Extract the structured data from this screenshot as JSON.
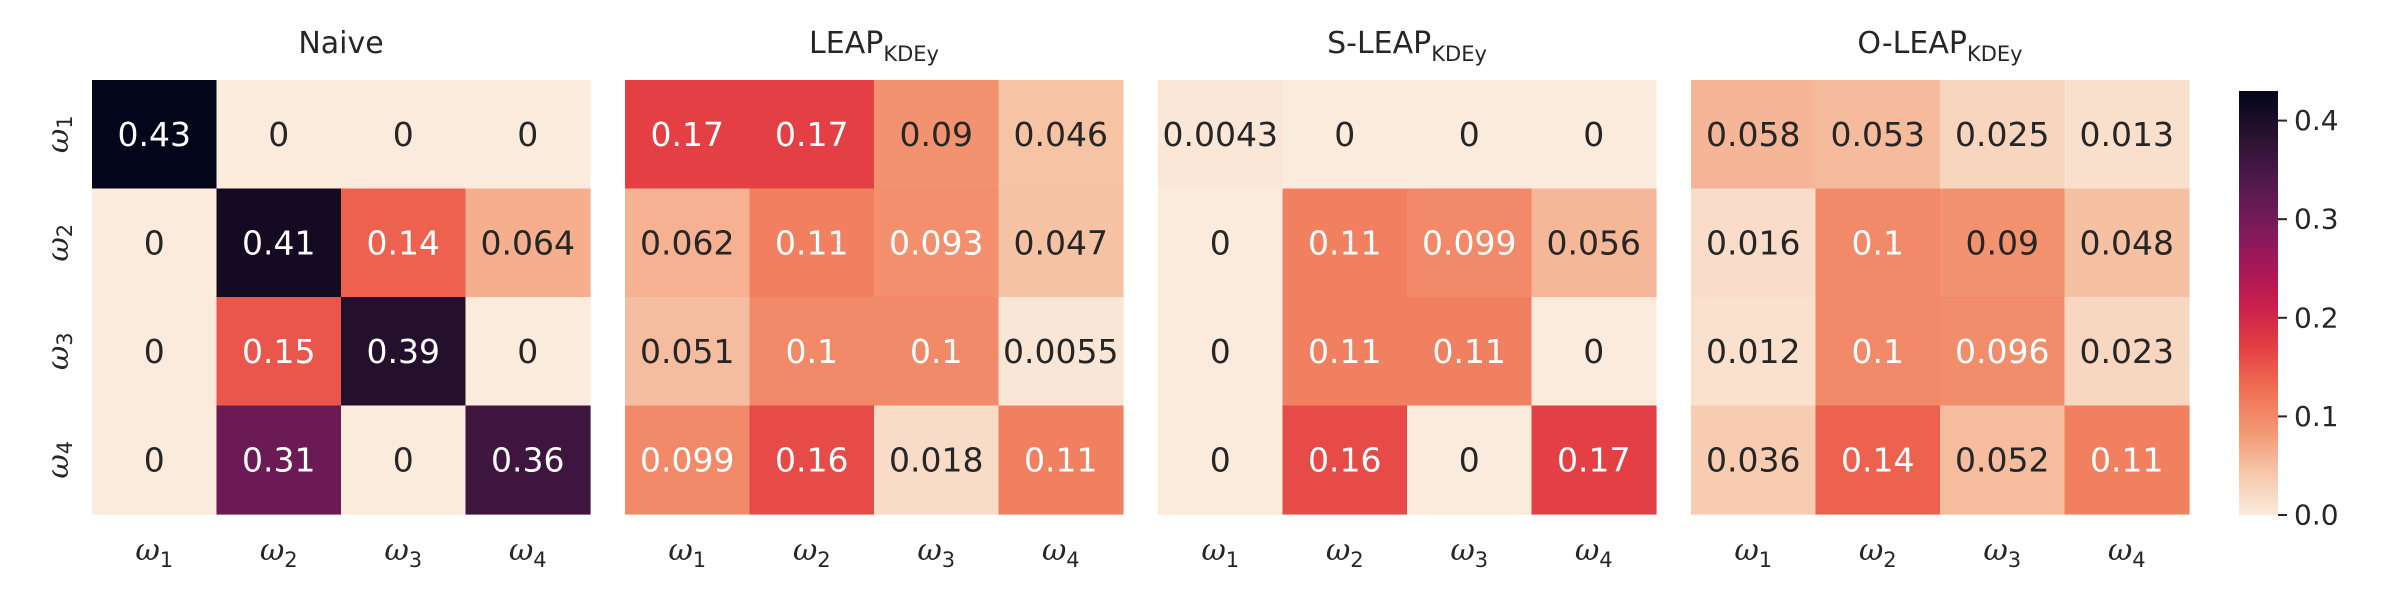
{
  "chart_data": [
    {
      "type": "heatmap",
      "title": "Naive",
      "title_sub": "",
      "row_labels": [
        "ω1",
        "ω2",
        "ω3",
        "ω4"
      ],
      "col_labels": [
        "ω1",
        "ω2",
        "ω3",
        "ω4"
      ],
      "values": [
        [
          0.43,
          0,
          0,
          0
        ],
        [
          0,
          0.41,
          0.14,
          0.064
        ],
        [
          0,
          0.15,
          0.39,
          0
        ],
        [
          0,
          0.31,
          0,
          0.36
        ]
      ],
      "labels": [
        [
          "0.43",
          "0",
          "0",
          "0"
        ],
        [
          "0",
          "0.41",
          "0.14",
          "0.064"
        ],
        [
          "0",
          "0.15",
          "0.39",
          "0"
        ],
        [
          "0",
          "0.31",
          "0",
          "0.36"
        ]
      ]
    },
    {
      "type": "heatmap",
      "title": "LEAP",
      "title_sub": "KDEy",
      "row_labels": [
        "ω1",
        "ω2",
        "ω3",
        "ω4"
      ],
      "col_labels": [
        "ω1",
        "ω2",
        "ω3",
        "ω4"
      ],
      "values": [
        [
          0.17,
          0.17,
          0.09,
          0.046
        ],
        [
          0.062,
          0.11,
          0.093,
          0.047
        ],
        [
          0.051,
          0.1,
          0.1,
          0.0055
        ],
        [
          0.099,
          0.16,
          0.018,
          0.11
        ]
      ],
      "labels": [
        [
          "0.17",
          "0.17",
          "0.09",
          "0.046"
        ],
        [
          "0.062",
          "0.11",
          "0.093",
          "0.047"
        ],
        [
          "0.051",
          "0.1",
          "0.1",
          "0.0055"
        ],
        [
          "0.099",
          "0.16",
          "0.018",
          "0.11"
        ]
      ]
    },
    {
      "type": "heatmap",
      "title": "S-LEAP",
      "title_sub": "KDEy",
      "row_labels": [
        "ω1",
        "ω2",
        "ω3",
        "ω4"
      ],
      "col_labels": [
        "ω1",
        "ω2",
        "ω3",
        "ω4"
      ],
      "values": [
        [
          0.0043,
          0,
          0,
          0
        ],
        [
          0,
          0.11,
          0.099,
          0.056
        ],
        [
          0,
          0.11,
          0.11,
          0
        ],
        [
          0,
          0.16,
          0,
          0.17
        ]
      ],
      "labels": [
        [
          "0.0043",
          "0",
          "0",
          "0"
        ],
        [
          "0",
          "0.11",
          "0.099",
          "0.056"
        ],
        [
          "0",
          "0.11",
          "0.11",
          "0"
        ],
        [
          "0",
          "0.16",
          "0",
          "0.17"
        ]
      ]
    },
    {
      "type": "heatmap",
      "title": "O-LEAP",
      "title_sub": "KDEy",
      "row_labels": [
        "ω1",
        "ω2",
        "ω3",
        "ω4"
      ],
      "col_labels": [
        "ω1",
        "ω2",
        "ω3",
        "ω4"
      ],
      "values": [
        [
          0.058,
          0.053,
          0.025,
          0.013
        ],
        [
          0.016,
          0.1,
          0.09,
          0.048
        ],
        [
          0.012,
          0.1,
          0.096,
          0.023
        ],
        [
          0.036,
          0.14,
          0.052,
          0.11
        ]
      ],
      "labels": [
        [
          "0.058",
          "0.053",
          "0.025",
          "0.013"
        ],
        [
          "0.016",
          "0.1",
          "0.09",
          "0.048"
        ],
        [
          "0.012",
          "0.1",
          "0.096",
          "0.023"
        ],
        [
          "0.036",
          "0.14",
          "0.052",
          "0.11"
        ]
      ]
    }
  ],
  "colorbar": {
    "colormap": "rocket_r",
    "vmin": 0.0,
    "vmax": 0.43,
    "ticks": [
      0.0,
      0.1,
      0.2,
      0.3,
      0.4
    ],
    "tick_labels": [
      "0.0",
      "0.1",
      "0.2",
      "0.3",
      "0.4"
    ]
  }
}
